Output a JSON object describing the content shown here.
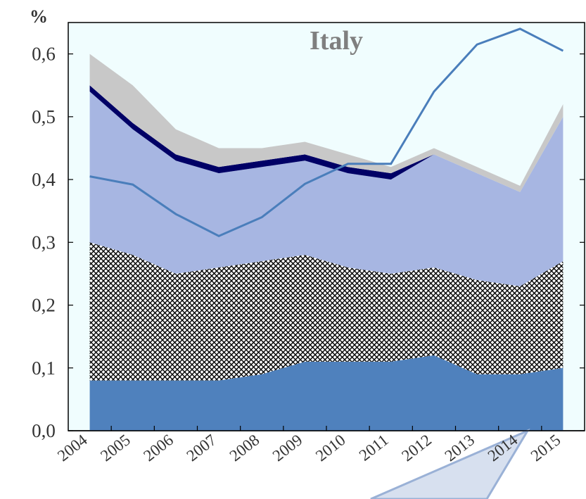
{
  "chart_data": {
    "type": "area",
    "title": "Italy",
    "y_label": "%",
    "categories": [
      "2004",
      "2005",
      "2006",
      "2007",
      "2008",
      "2009",
      "2010",
      "2011",
      "2012",
      "2013",
      "2014",
      "2015"
    ],
    "ylim": [
      0,
      0.65
    ],
    "yticks": [
      {
        "value": 0,
        "label": "0,0"
      },
      {
        "value": 0.1,
        "label": "0,1"
      },
      {
        "value": 0.2,
        "label": "0,2"
      },
      {
        "value": 0.3,
        "label": "0,3"
      },
      {
        "value": 0.4,
        "label": "0,4"
      },
      {
        "value": 0.5,
        "label": "0,5"
      },
      {
        "value": 0.6,
        "label": "0,6"
      }
    ],
    "stacked": true,
    "series": [
      {
        "type": "area",
        "color": "#4f81bd",
        "values": [
          0.08,
          0.08,
          0.08,
          0.08,
          0.09,
          0.11,
          0.11,
          0.11,
          0.12,
          0.09,
          0.09,
          0.1
        ]
      },
      {
        "type": "area",
        "color": "#000000",
        "pattern": "crosshatch",
        "values": [
          0.22,
          0.2,
          0.17,
          0.18,
          0.18,
          0.17,
          0.15,
          0.14,
          0.14,
          0.15,
          0.14,
          0.17
        ]
      },
      {
        "type": "area",
        "color": "#a7b6e2",
        "values": [
          0.24,
          0.2,
          0.18,
          0.15,
          0.15,
          0.15,
          0.15,
          0.15,
          0.18,
          0.17,
          0.15,
          0.23
        ]
      },
      {
        "type": "area",
        "color": "#000066",
        "values": [
          0.01,
          0.01,
          0.01,
          0.01,
          0.01,
          0.01,
          0.01,
          0.01,
          0,
          0,
          0,
          0
        ]
      },
      {
        "type": "area",
        "color": "#c8c8c8",
        "values": [
          0.05,
          0.06,
          0.04,
          0.03,
          0.02,
          0.02,
          0.02,
          0.01,
          0.01,
          0.01,
          0.01,
          0.02
        ]
      },
      {
        "type": "line",
        "color": "#4a7ebb",
        "values": [
          0.405,
          0.392,
          0.345,
          0.31,
          0.34,
          0.393,
          0.425,
          0.425,
          0.54,
          0.615,
          0.64,
          0.605
        ]
      }
    ]
  }
}
